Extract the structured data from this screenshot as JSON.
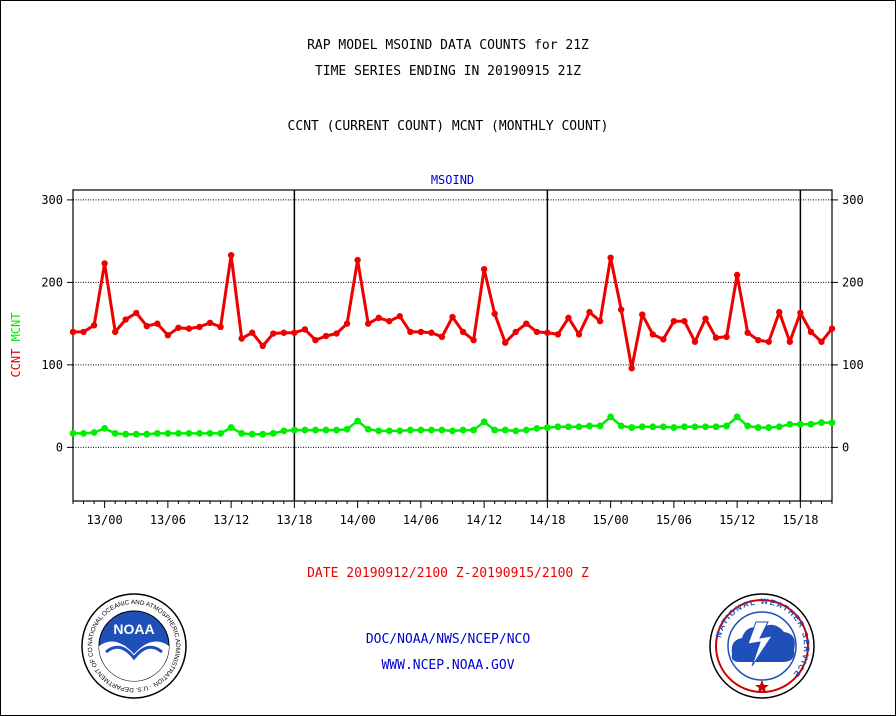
{
  "title_line1": "RAP MODEL MSOIND DATA COUNTS for 21Z",
  "title_line2": "TIME SERIES ENDING IN 20190915 21Z",
  "subtitle": "CCNT (CURRENT COUNT) MCNT (MONTHLY COUNT)",
  "date_range": "DATE 20190912/2100 Z-20190915/2100 Z",
  "footer_line1": "DOC/NOAA/NWS/NCEP/NCO",
  "footer_line2": "WWW.NCEP.NOAA.GOV",
  "noaa_logo_text": "NOAA",
  "noaa_ring_text": "NATIONAL OCEANIC AND ATMOSPHERIC ADMINISTRATION · U.S. DEPARTMENT OF COMMERCE",
  "nws_ring_text": "NATIONAL WEATHER SERVICE",
  "colors": {
    "ccnt": "#ee0000",
    "mcnt": "#00ee00",
    "title_blue": "#0000cc",
    "date_red": "#ee0000",
    "footer_blue": "#0000cc"
  },
  "chart_data": {
    "type": "line",
    "title": "MSOIND",
    "ylabel_ccnt": "CCNT",
    "ylabel_mcnt": "MCNT",
    "ylim": [
      -65,
      312
    ],
    "yticks": [
      0,
      100,
      200,
      300
    ],
    "x_start_hour": -3,
    "x_end_hour": 69,
    "xticks": [
      {
        "label": "13/00",
        "hour": 0
      },
      {
        "label": "13/06",
        "hour": 6
      },
      {
        "label": "13/12",
        "hour": 12
      },
      {
        "label": "13/18",
        "hour": 18
      },
      {
        "label": "14/00",
        "hour": 24
      },
      {
        "label": "14/06",
        "hour": 30
      },
      {
        "label": "14/12",
        "hour": 36
      },
      {
        "label": "14/18",
        "hour": 42
      },
      {
        "label": "15/00",
        "hour": 48
      },
      {
        "label": "15/06",
        "hour": 54
      },
      {
        "label": "15/12",
        "hour": 60
      },
      {
        "label": "15/18",
        "hour": 66
      }
    ],
    "day_boundaries_hour": [
      18,
      42,
      66
    ],
    "grid_y": [
      0,
      100,
      200,
      300
    ],
    "series": [
      {
        "name": "CCNT",
        "color": "#ee0000",
        "values": [
          140,
          140,
          148,
          223,
          140,
          155,
          163,
          147,
          150,
          136,
          145,
          144,
          146,
          151,
          146,
          233,
          132,
          139,
          123,
          138,
          139,
          139,
          143,
          130,
          135,
          138,
          150,
          227,
          150,
          157,
          153,
          159,
          140,
          140,
          139,
          134,
          158,
          140,
          130,
          216,
          162,
          127,
          140,
          150,
          140,
          139,
          137,
          157,
          137,
          164,
          153,
          230,
          167,
          96,
          161,
          137,
          131,
          153,
          153,
          128,
          156,
          133,
          134,
          209,
          139,
          130,
          128,
          164,
          128,
          163,
          140,
          128,
          144
        ],
        "start_hour": -3
      },
      {
        "name": "MCNT",
        "color": "#00ee00",
        "values": [
          17,
          17,
          18,
          23,
          17,
          16,
          16,
          16,
          17,
          17,
          17,
          17,
          17,
          17,
          17,
          24,
          17,
          16,
          16,
          17,
          20,
          21,
          21,
          21,
          21,
          21,
          22,
          32,
          22,
          20,
          20,
          20,
          21,
          21,
          21,
          21,
          20,
          21,
          21,
          31,
          21,
          21,
          20,
          21,
          23,
          24,
          25,
          25,
          25,
          26,
          26,
          37,
          26,
          24,
          25,
          25,
          25,
          24,
          25,
          25,
          25,
          25,
          26,
          37,
          26,
          24,
          24,
          25,
          28,
          28,
          28,
          30,
          30
        ],
        "start_hour": -3
      }
    ]
  }
}
